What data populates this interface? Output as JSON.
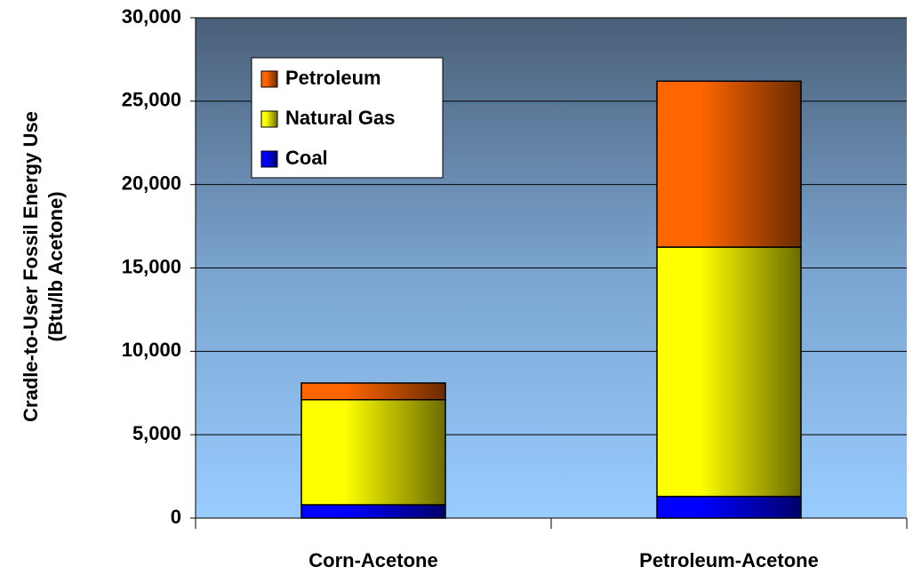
{
  "chart_data": {
    "type": "stacked_bar",
    "ylabel": [
      "Cradle-to-User Fossil Energy Use",
      "(Btu/lb Acetone)"
    ],
    "categories": [
      "Corn-Acetone",
      "Petroleum-Acetone"
    ],
    "series": [
      {
        "name": "Coal",
        "color": "#0000ff",
        "values": [
          800,
          1300
        ]
      },
      {
        "name": "Natural Gas",
        "color": "#ffff00",
        "values": [
          6300,
          14950
        ]
      },
      {
        "name": "Petroleum",
        "color": "#ff6600",
        "values": [
          1000,
          9950
        ]
      }
    ],
    "ylim": [
      0,
      30000
    ],
    "yticks": [
      0,
      {
        "value": 5000,
        "label": "5,000"
      },
      {
        "value": 10000,
        "label": "10,000"
      },
      {
        "value": 15000,
        "label": "15,000"
      },
      {
        "value": 20000,
        "label": "20,000"
      },
      {
        "value": 25000,
        "label": "25,000"
      },
      {
        "value": 30000,
        "label": "30,000"
      }
    ],
    "grid": true,
    "legend": "top-left"
  }
}
